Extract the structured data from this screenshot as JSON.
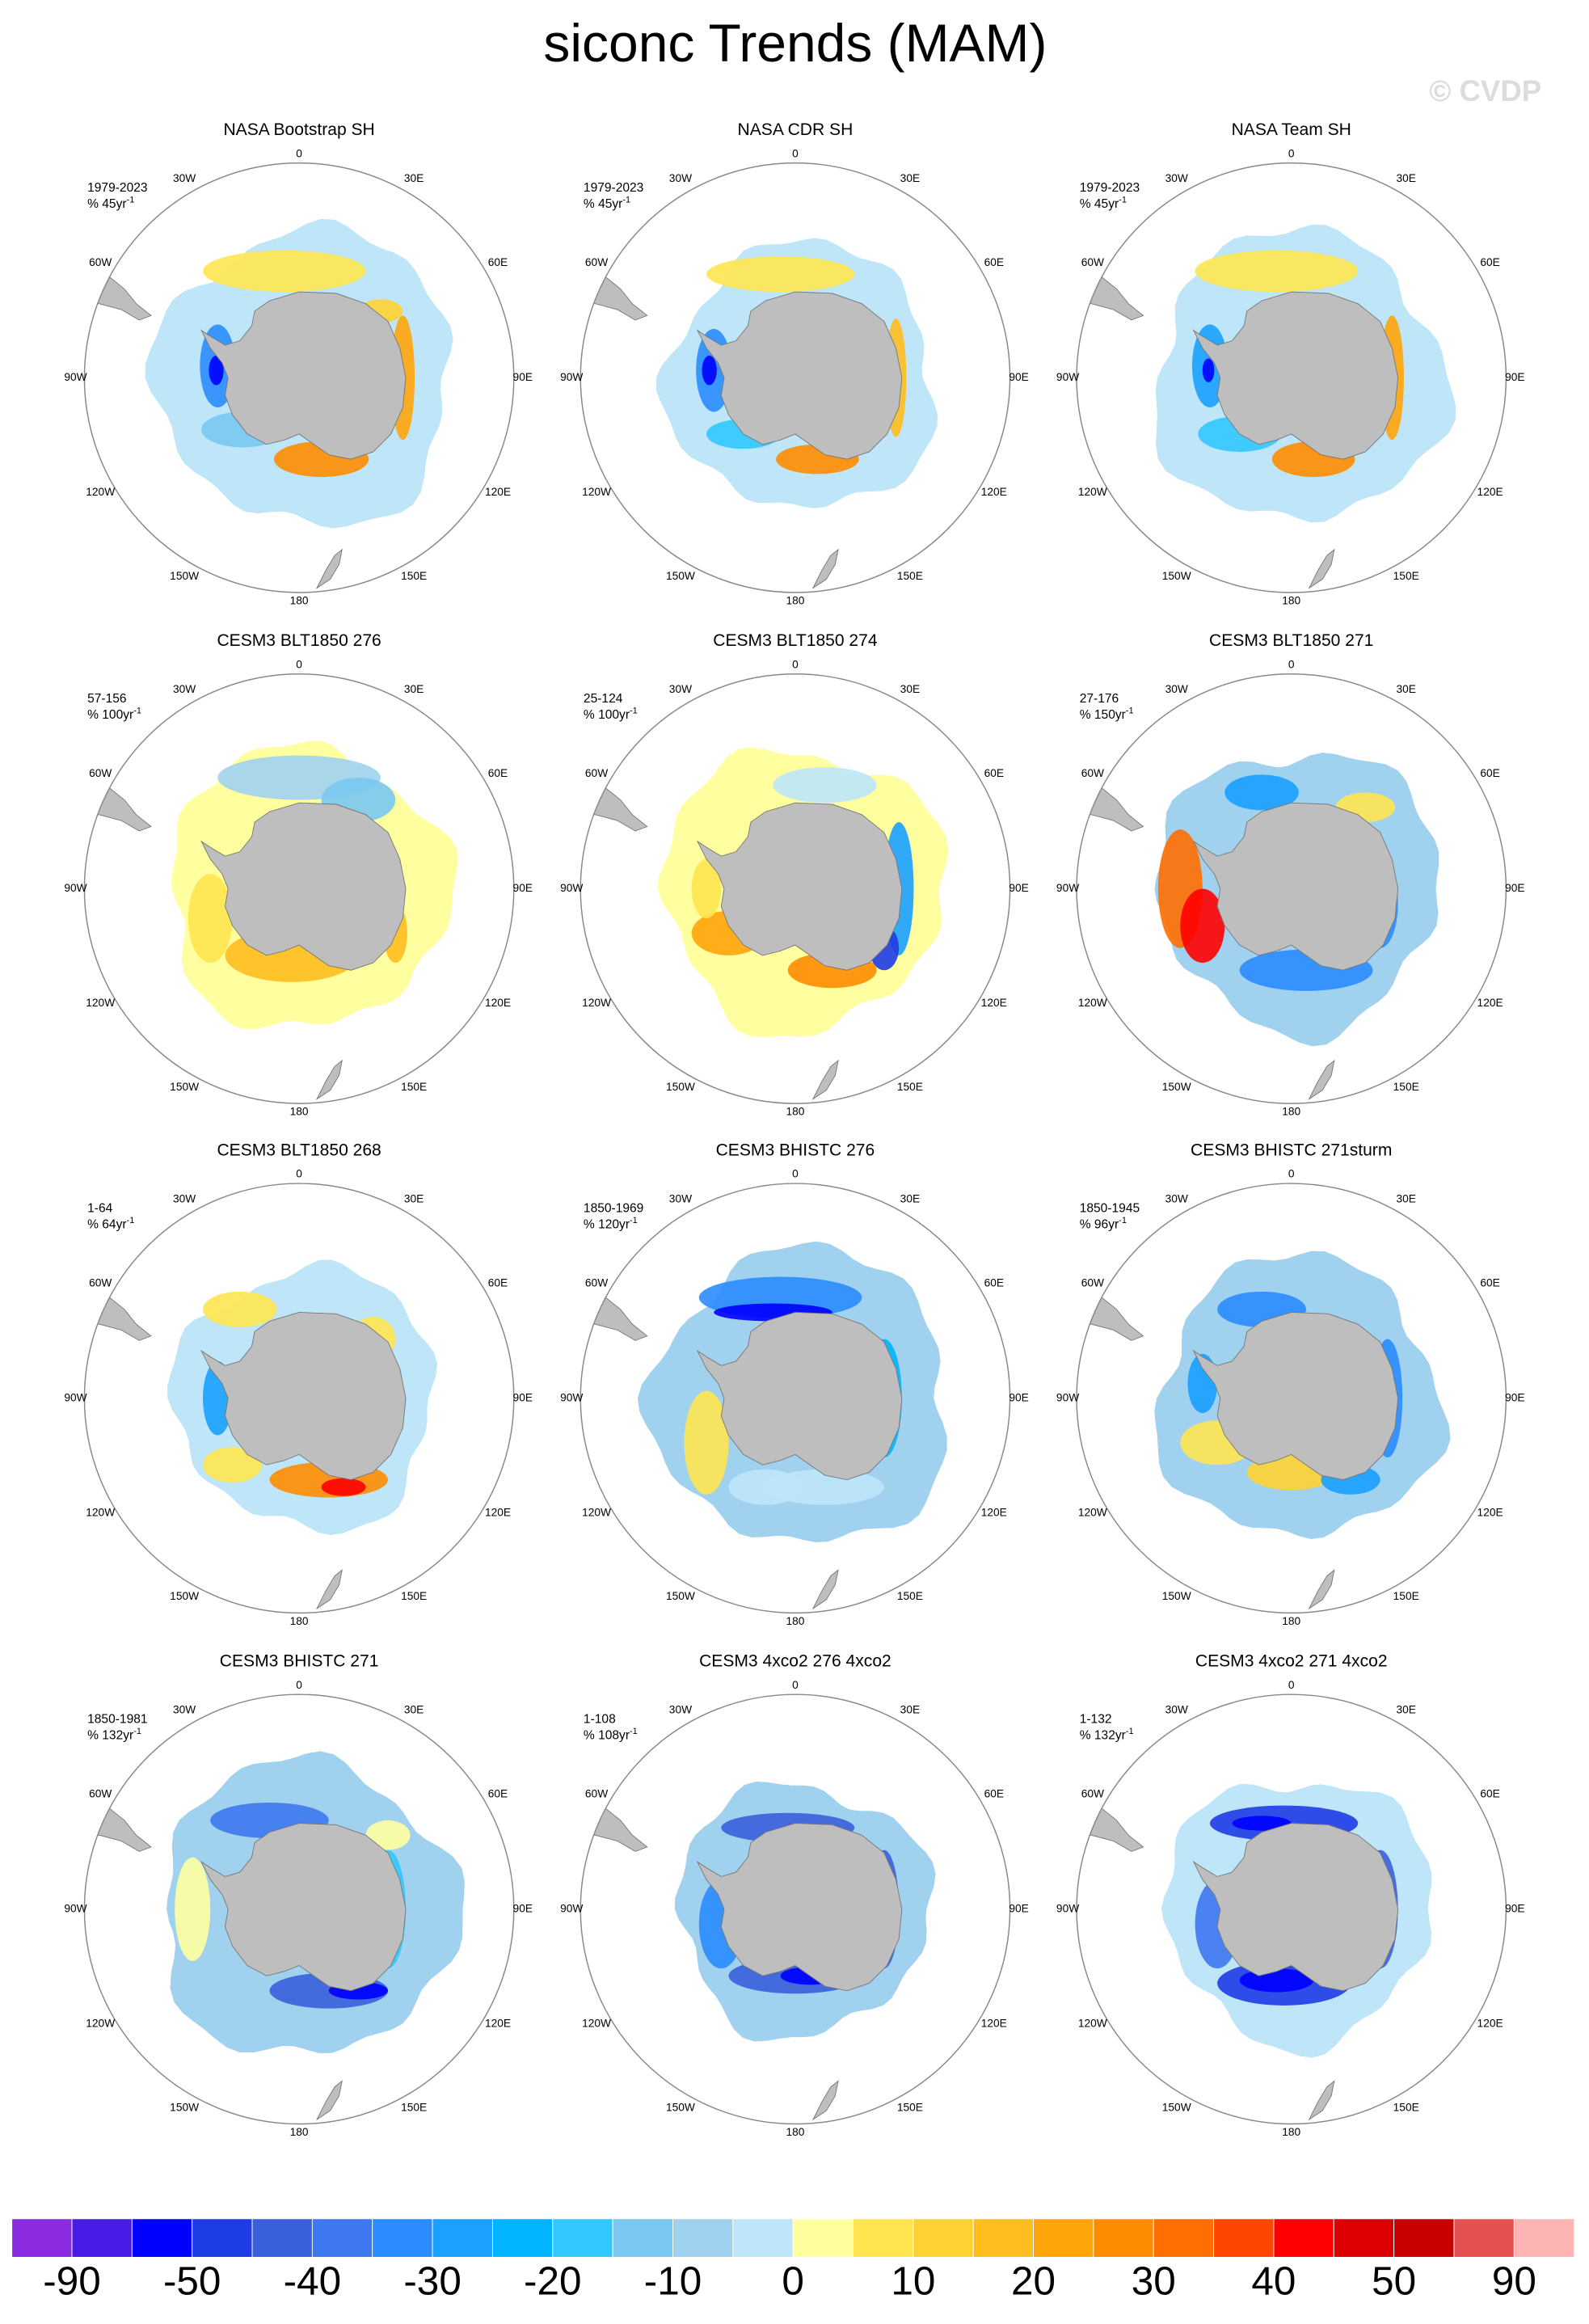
{
  "title": "siconc Trends (MAM)",
  "watermark": "© CVDP",
  "longitude_labels": [
    "0",
    "30E",
    "60E",
    "90E",
    "120E",
    "150E",
    "180",
    "150W",
    "120W",
    "90W",
    "60W",
    "30W"
  ],
  "panels": [
    {
      "title": "NASA Bootstrap SH",
      "period": "1979-2023",
      "units": "% 45yr",
      "units_exponent": "-1"
    },
    {
      "title": "NASA CDR SH",
      "period": "1979-2023",
      "units": "% 45yr",
      "units_exponent": "-1"
    },
    {
      "title": "NASA Team SH",
      "period": "1979-2023",
      "units": "% 45yr",
      "units_exponent": "-1"
    },
    {
      "title": "CESM3 BLT1850 276",
      "period": "57-156",
      "units": "% 100yr",
      "units_exponent": "-1"
    },
    {
      "title": "CESM3 BLT1850 274",
      "period": "25-124",
      "units": "% 100yr",
      "units_exponent": "-1"
    },
    {
      "title": "CESM3 BLT1850 271",
      "period": "27-176",
      "units": "% 150yr",
      "units_exponent": "-1"
    },
    {
      "title": "CESM3 BLT1850 268",
      "period": "1-64",
      "units": "% 64yr",
      "units_exponent": "-1"
    },
    {
      "title": "CESM3 BHISTC 276",
      "period": "1850-1969",
      "units": "% 120yr",
      "units_exponent": "-1"
    },
    {
      "title": "CESM3 BHISTC 271sturm",
      "period": "1850-1945",
      "units": "% 96yr",
      "units_exponent": "-1"
    },
    {
      "title": "CESM3 BHISTC 271",
      "period": "1850-1981",
      "units": "% 132yr",
      "units_exponent": "-1"
    },
    {
      "title": "CESM3 4xco2 276 4xco2",
      "period": "1-108",
      "units": "% 108yr",
      "units_exponent": "-1"
    },
    {
      "title": "CESM3 4xco2 271 4xco2",
      "period": "1-132",
      "units": "% 132yr",
      "units_exponent": "-1"
    }
  ],
  "colorbar": {
    "colors": [
      "#8a2be2",
      "#4b1be6",
      "#0000ff",
      "#1e3ce6",
      "#3a5fdc",
      "#3d78f0",
      "#2a8cff",
      "#1aa0ff",
      "#00b4ff",
      "#32c8ff",
      "#78c8f0",
      "#a0d2f0",
      "#bee6f8",
      "#ffffa0",
      "#ffe650",
      "#ffd232",
      "#ffbe1e",
      "#ffa50a",
      "#ff8c00",
      "#ff6e00",
      "#ff4600",
      "#ff0000",
      "#dc0000",
      "#c80000",
      "#e65050",
      "#ffb4b4"
    ],
    "labels": [
      -90,
      -50,
      -40,
      -30,
      -20,
      -10,
      0,
      10,
      20,
      30,
      40,
      50,
      90
    ]
  }
}
